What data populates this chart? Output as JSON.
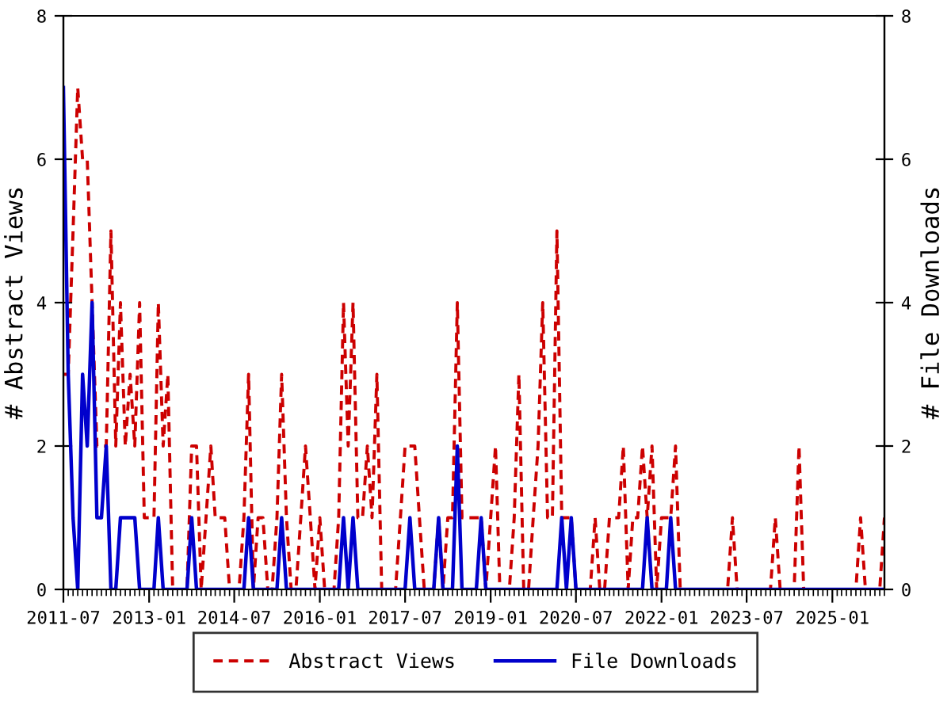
{
  "chart_data": {
    "type": "line",
    "xlabel": null,
    "ylabel": "# Abstract Views",
    "y2label": "# File Downloads",
    "x": [
      "2011-07",
      "2011-08",
      "2011-09",
      "2011-10",
      "2011-11",
      "2011-12",
      "2012-01",
      "2012-02",
      "2012-03",
      "2012-04",
      "2012-05",
      "2012-06",
      "2012-07",
      "2012-08",
      "2012-09",
      "2012-10",
      "2012-11",
      "2012-12",
      "2013-01",
      "2013-02",
      "2013-03",
      "2013-04",
      "2013-05",
      "2013-06",
      "2013-07",
      "2013-08",
      "2013-09",
      "2013-10",
      "2013-11",
      "2013-12",
      "2014-01",
      "2014-02",
      "2014-03",
      "2014-04",
      "2014-05",
      "2014-06",
      "2014-07",
      "2014-08",
      "2014-09",
      "2014-10",
      "2014-11",
      "2014-12",
      "2015-01",
      "2015-02",
      "2015-03",
      "2015-04",
      "2015-05",
      "2015-06",
      "2015-07",
      "2015-08",
      "2015-09",
      "2015-10",
      "2015-11",
      "2015-12",
      "2016-01",
      "2016-02",
      "2016-03",
      "2016-04",
      "2016-05",
      "2016-06",
      "2016-07",
      "2016-08",
      "2016-09",
      "2016-10",
      "2016-11",
      "2016-12",
      "2017-01",
      "2017-02",
      "2017-03",
      "2017-04",
      "2017-05",
      "2017-06",
      "2017-07",
      "2017-08",
      "2017-09",
      "2017-10",
      "2017-11",
      "2017-12",
      "2018-01",
      "2018-02",
      "2018-03",
      "2018-04",
      "2018-05",
      "2018-06",
      "2018-07",
      "2018-08",
      "2018-09",
      "2018-10",
      "2018-11",
      "2018-12",
      "2019-01",
      "2019-02",
      "2019-03",
      "2019-04",
      "2019-05",
      "2019-06",
      "2019-07",
      "2019-08",
      "2019-09",
      "2019-10",
      "2019-11",
      "2019-12",
      "2020-01",
      "2020-02",
      "2020-03",
      "2020-04",
      "2020-05",
      "2020-06",
      "2020-07",
      "2020-08",
      "2020-09",
      "2020-10",
      "2020-11",
      "2020-12",
      "2021-01",
      "2021-02",
      "2021-03",
      "2021-04",
      "2021-05",
      "2021-06",
      "2021-07",
      "2021-08",
      "2021-09",
      "2021-10",
      "2021-11",
      "2021-12",
      "2022-01",
      "2022-02",
      "2022-03",
      "2022-04",
      "2022-05",
      "2022-06",
      "2022-07",
      "2022-08",
      "2022-09",
      "2022-10",
      "2022-11",
      "2022-12",
      "2023-01",
      "2023-02",
      "2023-03",
      "2023-04",
      "2023-05",
      "2023-06",
      "2023-07",
      "2023-08",
      "2023-09",
      "2023-10",
      "2023-11",
      "2023-12",
      "2024-01",
      "2024-02",
      "2024-03",
      "2024-04",
      "2024-05",
      "2024-06",
      "2024-07",
      "2024-08",
      "2024-09",
      "2024-10",
      "2024-11",
      "2024-12",
      "2025-01",
      "2025-02",
      "2025-03",
      "2025-04",
      "2025-05",
      "2025-06",
      "2025-07",
      "2025-08",
      "2025-09",
      "2025-10",
      "2025-11",
      "2025-12"
    ],
    "series": [
      {
        "name": "Abstract Views",
        "color": "#cc0000",
        "line_style": "dashed",
        "values": [
          3,
          3,
          5,
          7,
          6,
          6,
          4,
          2,
          2,
          2,
          5,
          2,
          4,
          2,
          3,
          2,
          4,
          1,
          1,
          1,
          4,
          2,
          3,
          0,
          0,
          0,
          0,
          2,
          2,
          0,
          1,
          2,
          1,
          1,
          1,
          0,
          0,
          0,
          1,
          3,
          0,
          1,
          1,
          0,
          0,
          1,
          3,
          1,
          0,
          0,
          1,
          2,
          1,
          0,
          1,
          0,
          0,
          0,
          1,
          4,
          2,
          4,
          1,
          1,
          2,
          1,
          3,
          0,
          0,
          0,
          0,
          1,
          2,
          2,
          2,
          1,
          0,
          0,
          0,
          1,
          0,
          1,
          1,
          4,
          1,
          1,
          1,
          1,
          1,
          0,
          1,
          2,
          0,
          0,
          0,
          1,
          3,
          0,
          0,
          1,
          2,
          4,
          1,
          1,
          5,
          1,
          1,
          1,
          0,
          0,
          0,
          0,
          1,
          0,
          0,
          1,
          1,
          1,
          2,
          0,
          1,
          1,
          2,
          1,
          2,
          0,
          1,
          1,
          1,
          2,
          0,
          0,
          0,
          0,
          0,
          0,
          0,
          0,
          0,
          0,
          0,
          1,
          0,
          0,
          0,
          0,
          0,
          0,
          0,
          0,
          1,
          0,
          0,
          0,
          0,
          2,
          0,
          0,
          0,
          0,
          0,
          0,
          0,
          0,
          0,
          0,
          0,
          0,
          1,
          0,
          0,
          0,
          0,
          1
        ]
      },
      {
        "name": "File Downloads",
        "color": "#0000cc",
        "line_style": "solid",
        "axis": "y2",
        "values": [
          7,
          3,
          1,
          0,
          3,
          2,
          4,
          1,
          1,
          2,
          0,
          0,
          1,
          1,
          1,
          1,
          0,
          0,
          0,
          0,
          1,
          0,
          0,
          0,
          0,
          0,
          0,
          1,
          0,
          0,
          0,
          0,
          0,
          0,
          0,
          0,
          0,
          0,
          0,
          1,
          0,
          0,
          0,
          0,
          0,
          0,
          1,
          0,
          0,
          0,
          0,
          0,
          0,
          0,
          0,
          0,
          0,
          0,
          0,
          1,
          0,
          1,
          0,
          0,
          0,
          0,
          0,
          0,
          0,
          0,
          0,
          0,
          0,
          1,
          0,
          0,
          0,
          0,
          0,
          1,
          0,
          0,
          0,
          2,
          0,
          0,
          0,
          0,
          1,
          0,
          0,
          0,
          0,
          0,
          0,
          0,
          0,
          0,
          0,
          0,
          0,
          0,
          0,
          0,
          0,
          1,
          0,
          1,
          0,
          0,
          0,
          0,
          0,
          0,
          0,
          0,
          0,
          0,
          0,
          0,
          0,
          0,
          0,
          1,
          0,
          0,
          0,
          0,
          1,
          0,
          0,
          0,
          0,
          0,
          0,
          0,
          0,
          0,
          0,
          0,
          0,
          0,
          0,
          0,
          0,
          0,
          0,
          0,
          0,
          0,
          0,
          0,
          0,
          0,
          0,
          0,
          0,
          0,
          0,
          0,
          0,
          0,
          0,
          0,
          0,
          0,
          0,
          0,
          0,
          0,
          0,
          0,
          0,
          0
        ]
      }
    ],
    "xlim": [
      "2011-07",
      "2025-12"
    ],
    "xticks": [
      "2011-07",
      "2013-01",
      "2014-07",
      "2016-01",
      "2017-07",
      "2019-01",
      "2020-07",
      "2022-01",
      "2023-07",
      "2025-01"
    ],
    "ylim": [
      0,
      8
    ],
    "yticks": [
      0,
      2,
      4,
      6,
      8
    ],
    "y2lim": [
      0,
      8
    ],
    "y2ticks": [
      0,
      2,
      4,
      6,
      8
    ],
    "grid": false,
    "legend": "bottom"
  }
}
